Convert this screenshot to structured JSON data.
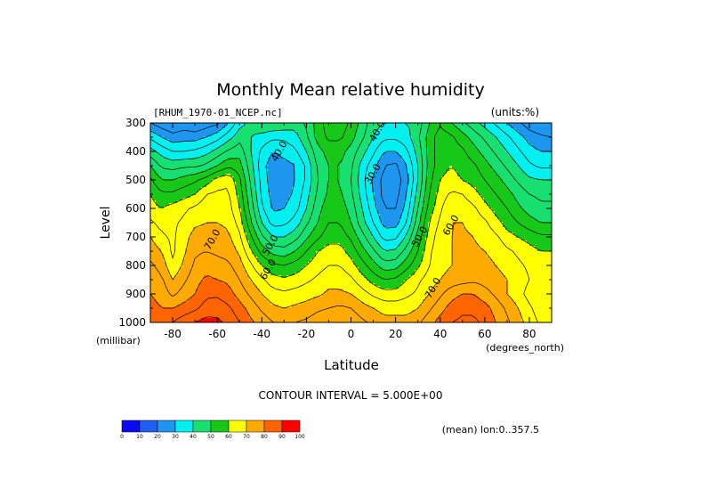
{
  "chart_data": {
    "type": "heatmap",
    "title": "Monthly Mean relative humidity",
    "file_label": "[RHUM_1970-01_NCEP.nc]",
    "units_label": "(units:%)",
    "ylabel": "Level",
    "yunit": "(millibar)",
    "xlabel": "Latitude",
    "xunit": "(degrees_north)",
    "xlim": [
      -90,
      90
    ],
    "ylim": [
      1000,
      300
    ],
    "x_ticks": [
      -80,
      -60,
      -40,
      -20,
      0,
      20,
      40,
      60,
      80
    ],
    "x_tick_labels": [
      "-80",
      "-60",
      "-40",
      "-20",
      "0",
      "20",
      "40",
      "60",
      "80"
    ],
    "y_ticks": [
      300,
      400,
      500,
      600,
      700,
      800,
      900,
      1000
    ],
    "y_tick_labels": [
      "300",
      "400",
      "500",
      "600",
      "700",
      "800",
      "900",
      "1000"
    ],
    "contour_interval_text": "CONTOUR INTERVAL = 5.000E+00",
    "mean_text": "(mean) lon:0..357.5",
    "levels": [
      0,
      10,
      20,
      30,
      40,
      50,
      60,
      70,
      80,
      90,
      100
    ],
    "level_labels": [
      "0",
      "10",
      "20",
      "30",
      "40",
      "50",
      "60",
      "70",
      "80",
      "90",
      "100"
    ],
    "colors": [
      "#7d1fb5",
      "#0a0af0",
      "#1e5ef0",
      "#1e96f0",
      "#00f0f0",
      "#18e070",
      "#18c818",
      "#ffff00",
      "#ffaa00",
      "#ff6400",
      "#ff0000"
    ],
    "contour_labels": [
      {
        "text": "40.0",
        "lat": -32,
        "p": 400
      },
      {
        "text": "40.0",
        "lat": 12,
        "p": 330
      },
      {
        "text": "30.0",
        "lat": 10,
        "p": 480
      },
      {
        "text": "50.0",
        "lat": -36,
        "p": 730
      },
      {
        "text": "60.0",
        "lat": -37,
        "p": 815
      },
      {
        "text": "70.0",
        "lat": -62,
        "p": 710
      },
      {
        "text": "50.0",
        "lat": 31,
        "p": 700
      },
      {
        "text": "60.0",
        "lat": 45,
        "p": 660
      },
      {
        "text": "70.0",
        "lat": 37,
        "p": 880
      }
    ],
    "humidity_field": {
      "lat": [
        -90,
        -85,
        -80,
        -75,
        -70,
        -65,
        -60,
        -55,
        -50,
        -45,
        -40,
        -35,
        -30,
        -25,
        -20,
        -15,
        -10,
        -5,
        0,
        5,
        10,
        15,
        20,
        25,
        30,
        35,
        40,
        45,
        50,
        55,
        60,
        65,
        70,
        75,
        80,
        85,
        90
      ],
      "p": [
        300,
        350,
        400,
        450,
        500,
        550,
        600,
        650,
        700,
        750,
        800,
        850,
        900,
        950,
        1000
      ],
      "values": [
        [
          25,
          22,
          20,
          22,
          20,
          22,
          24,
          30,
          38,
          42,
          45,
          45,
          44,
          42,
          46,
          52,
          58,
          58,
          54,
          48,
          42,
          40,
          40,
          40,
          42,
          50,
          54,
          50,
          46,
          42,
          38,
          34,
          30,
          26,
          22,
          20,
          20
        ],
        [
          34,
          30,
          27,
          28,
          28,
          30,
          33,
          38,
          43,
          40,
          38,
          36,
          36,
          38,
          44,
          52,
          56,
          56,
          52,
          46,
          40,
          36,
          36,
          38,
          44,
          52,
          58,
          56,
          52,
          48,
          44,
          40,
          36,
          32,
          28,
          26,
          25
        ],
        [
          42,
          38,
          35,
          35,
          36,
          38,
          42,
          46,
          48,
          40,
          34,
          30,
          32,
          34,
          40,
          48,
          52,
          52,
          48,
          42,
          36,
          30,
          30,
          34,
          42,
          52,
          58,
          58,
          56,
          52,
          48,
          44,
          40,
          36,
          32,
          30,
          30
        ],
        [
          50,
          44,
          43,
          44,
          44,
          46,
          50,
          54,
          52,
          42,
          32,
          27,
          28,
          30,
          36,
          46,
          50,
          50,
          46,
          38,
          32,
          25,
          24,
          30,
          40,
          52,
          58,
          60,
          58,
          56,
          52,
          48,
          44,
          40,
          36,
          34,
          34
        ],
        [
          56,
          50,
          50,
          52,
          54,
          57,
          62,
          64,
          56,
          44,
          33,
          27,
          27,
          30,
          36,
          45,
          50,
          50,
          45,
          37,
          29,
          23,
          22,
          28,
          40,
          53,
          60,
          62,
          60,
          58,
          55,
          52,
          48,
          44,
          41,
          40,
          40
        ],
        [
          60,
          56,
          56,
          58,
          60,
          65,
          66,
          66,
          58,
          46,
          34,
          28,
          28,
          31,
          38,
          46,
          51,
          51,
          46,
          38,
          30,
          23,
          23,
          30,
          42,
          55,
          62,
          66,
          65,
          62,
          58,
          55,
          52,
          48,
          45,
          44,
          44
        ],
        [
          62,
          60,
          62,
          64,
          66,
          68,
          68,
          67,
          60,
          48,
          36,
          29,
          30,
          33,
          40,
          48,
          53,
          53,
          48,
          40,
          32,
          25,
          25,
          32,
          45,
          57,
          64,
          70,
          68,
          66,
          62,
          58,
          55,
          51,
          48,
          46,
          46
        ],
        [
          66,
          63,
          64,
          66,
          69,
          70,
          70,
          69,
          63,
          51,
          40,
          33,
          34,
          37,
          44,
          50,
          55,
          55,
          50,
          42,
          35,
          28,
          28,
          35,
          48,
          60,
          66,
          70,
          70,
          68,
          66,
          62,
          58,
          55,
          52,
          50,
          50
        ],
        [
          70,
          66,
          64,
          68,
          72,
          72,
          72,
          71,
          66,
          56,
          46,
          40,
          40,
          43,
          49,
          54,
          58,
          58,
          54,
          47,
          40,
          33,
          34,
          41,
          52,
          62,
          68,
          70,
          71,
          70,
          68,
          66,
          62,
          60,
          58,
          56,
          56
        ],
        [
          73,
          70,
          64,
          69,
          74,
          75,
          74,
          73,
          69,
          61,
          53,
          48,
          47,
          50,
          55,
          60,
          62,
          62,
          58,
          52,
          46,
          40,
          41,
          47,
          55,
          64,
          68,
          70,
          71,
          71,
          70,
          69,
          66,
          64,
          62,
          60,
          60
        ],
        [
          76,
          73,
          66,
          71,
          76,
          78,
          77,
          76,
          72,
          66,
          60,
          56,
          55,
          57,
          60,
          63,
          65,
          65,
          62,
          57,
          52,
          47,
          48,
          53,
          59,
          65,
          68,
          70,
          71,
          72,
          71,
          70,
          68,
          66,
          64,
          62,
          62
        ],
        [
          78,
          76,
          70,
          74,
          78,
          81,
          80,
          79,
          75,
          70,
          66,
          62,
          61,
          62,
          64,
          66,
          68,
          68,
          66,
          62,
          58,
          55,
          56,
          60,
          64,
          67,
          70,
          72,
          73,
          74,
          73,
          72,
          70,
          68,
          65,
          62,
          62
        ],
        [
          80,
          78,
          74,
          77,
          80,
          84,
          84,
          82,
          78,
          74,
          70,
          67,
          66,
          67,
          68,
          69,
          71,
          71,
          70,
          67,
          64,
          62,
          62,
          64,
          66,
          70,
          74,
          78,
          80,
          80,
          77,
          74,
          70,
          67,
          63,
          60,
          60
        ],
        [
          82,
          80,
          80,
          82,
          84,
          87,
          88,
          86,
          82,
          78,
          74,
          71,
          70,
          71,
          72,
          74,
          75,
          76,
          75,
          72,
          70,
          68,
          68,
          68,
          70,
          74,
          78,
          82,
          84,
          84,
          82,
          78,
          74,
          70,
          66,
          62,
          60
        ],
        [
          85,
          85,
          85,
          88,
          90,
          92,
          91,
          89,
          85,
          81,
          78,
          75,
          74,
          75,
          76,
          78,
          79,
          80,
          79,
          76,
          74,
          72,
          72,
          72,
          74,
          78,
          82,
          85,
          86,
          86,
          84,
          80,
          76,
          72,
          68,
          64,
          62
        ]
      ]
    }
  }
}
